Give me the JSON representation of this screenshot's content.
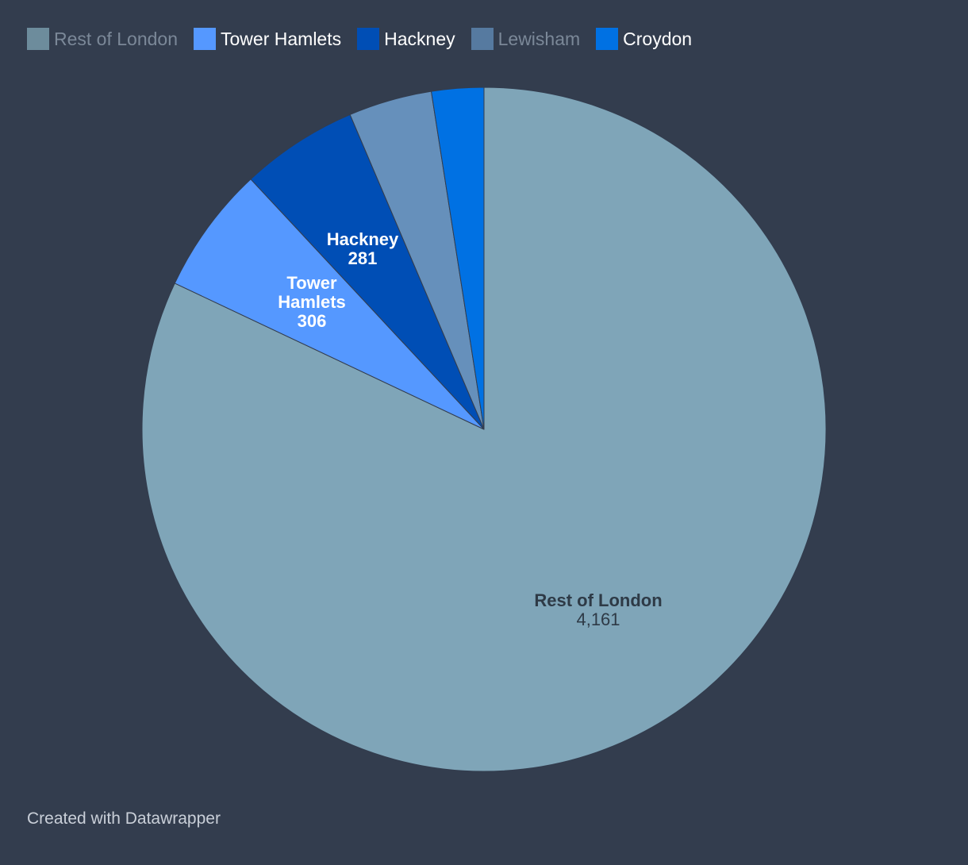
{
  "chart_data": {
    "type": "pie",
    "title": "",
    "categories": [
      "Rest of London",
      "Tower Hamlets",
      "Hackney",
      "Lewisham",
      "Croydon"
    ],
    "values": [
      4161,
      306,
      281,
      200,
      125
    ],
    "value_labels": [
      "4,161",
      "306",
      "281",
      "",
      ""
    ],
    "colors": [
      "#7fa5b8",
      "#5598ff",
      "#004eb5",
      "#6690bb",
      "#0071e3"
    ],
    "legend_swatch_colors": [
      "#6d8c9c",
      "#5598ff",
      "#004eb5",
      "#567aa0",
      "#0071e3"
    ],
    "legend_position": "top-left",
    "slice_label_lines": [
      [
        "Rest of London"
      ],
      [
        "Tower",
        "Hamlets"
      ],
      [
        "Hackney"
      ],
      [],
      []
    ]
  },
  "footer": {
    "credit": "Created with Datawrapper"
  }
}
